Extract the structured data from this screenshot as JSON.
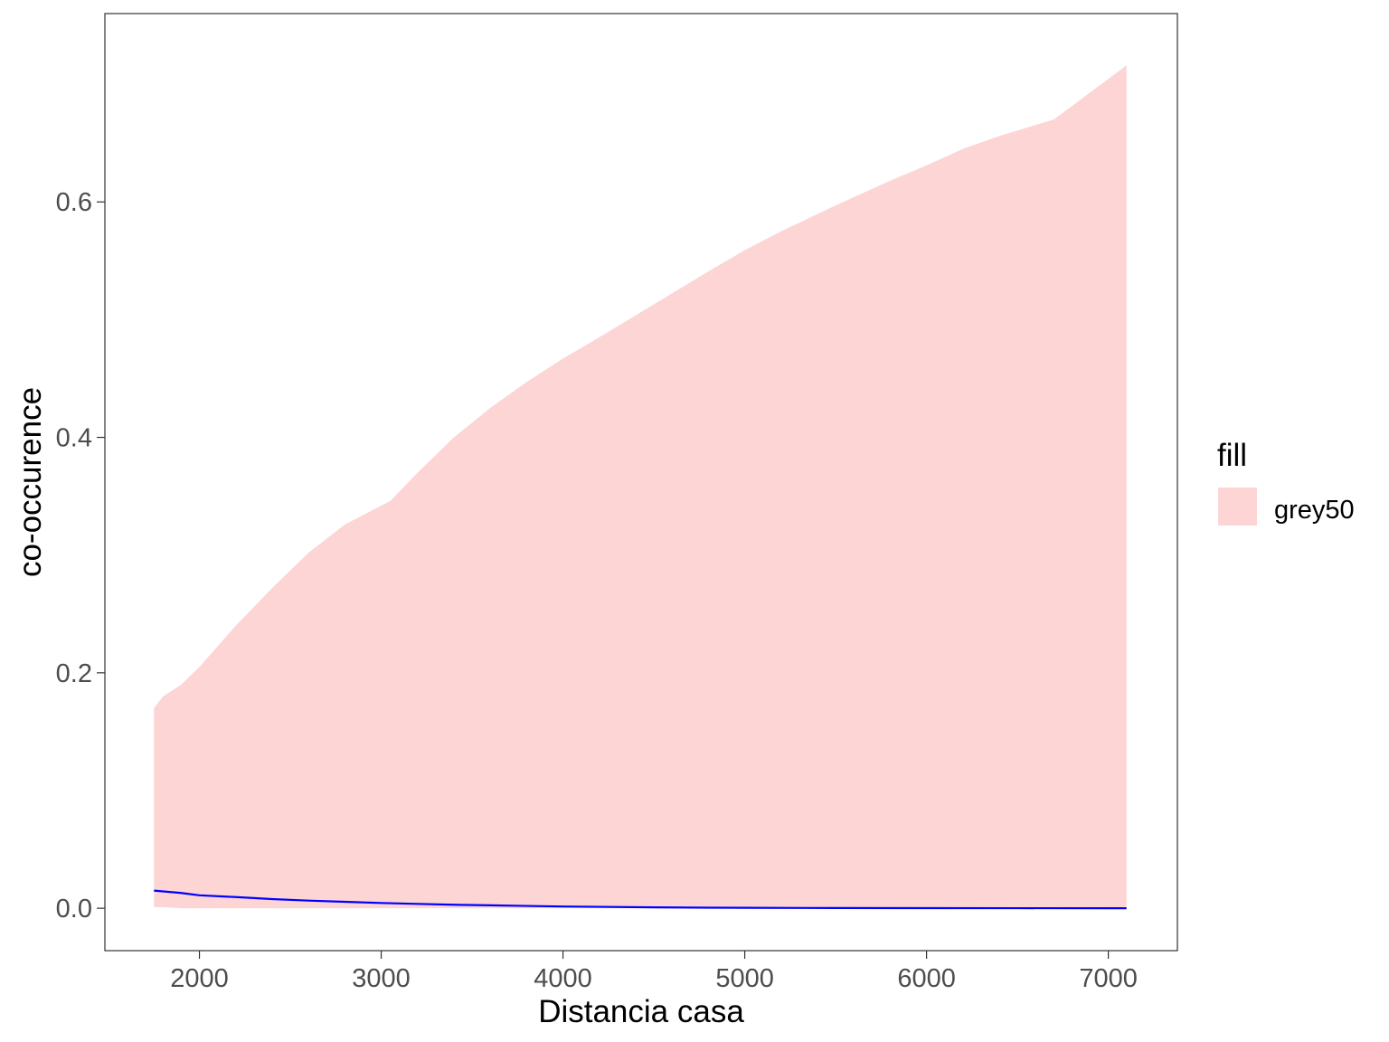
{
  "chart_data": {
    "type": "area",
    "title": "",
    "xlabel": "Distancia casa",
    "ylabel": "co-occurence",
    "xlim": [
      1480,
      7380
    ],
    "ylim": [
      -0.036,
      0.76
    ],
    "x_ticks": [
      2000,
      3000,
      4000,
      5000,
      6000,
      7000
    ],
    "x_tick_labels": [
      "2000",
      "3000",
      "4000",
      "5000",
      "6000",
      "7000"
    ],
    "y_ticks": [
      0.0,
      0.2,
      0.4,
      0.6
    ],
    "y_tick_labels": [
      "0.0",
      "0.2",
      "0.4",
      "0.6"
    ],
    "grid": false,
    "colors": {
      "ribbon": "#fcd5d4",
      "line": "#0000ff",
      "panel_border": "#333333",
      "tick_text": "#4d4d4d"
    },
    "ribbon": {
      "x": [
        1750,
        1800,
        1900,
        2000,
        2200,
        2400,
        2600,
        2800,
        2950,
        3050,
        3200,
        3400,
        3600,
        3800,
        4000,
        4200,
        4500,
        4800,
        5000,
        5200,
        5500,
        5800,
        6000,
        6200,
        6400,
        6700,
        6900,
        7100
      ],
      "upper": [
        0.17,
        0.18,
        0.19,
        0.205,
        0.24,
        0.272,
        0.302,
        0.326,
        0.338,
        0.346,
        0.37,
        0.4,
        0.425,
        0.447,
        0.467,
        0.485,
        0.513,
        0.541,
        0.559,
        0.575,
        0.597,
        0.618,
        0.631,
        0.645,
        0.656,
        0.67,
        0.693,
        0.716
      ],
      "lower": [
        0.001,
        0.001,
        0.0,
        0.0,
        0.0,
        0.0,
        0.0,
        0.0,
        0.0,
        0.0,
        0.0,
        0.0,
        0.0,
        0.0,
        0.0,
        0.0,
        0.0,
        0.0,
        0.0,
        0.0,
        0.0,
        0.0,
        0.0,
        0.0,
        0.0,
        0.0,
        0.0,
        0.0
      ]
    },
    "series": [
      {
        "x": [
          1750,
          1900,
          2000,
          2200,
          2400,
          2600,
          2800,
          3000,
          3200,
          3400,
          3600,
          3800,
          4000,
          4200,
          4500,
          4800,
          5000,
          5500,
          6000,
          6500,
          7000,
          7100
        ],
        "values": [
          0.015,
          0.013,
          0.011,
          0.0095,
          0.0078,
          0.0065,
          0.0055,
          0.0045,
          0.0037,
          0.003,
          0.0025,
          0.002,
          0.0015,
          0.0012,
          0.0008,
          0.0005,
          0.0004,
          0.0002,
          0.0001,
          5e-05,
          2e-05,
          1e-05
        ]
      }
    ],
    "legend": {
      "title": "fill",
      "position": "right",
      "entries": [
        {
          "label": "grey50",
          "color": "#fcd5d4"
        }
      ]
    }
  }
}
